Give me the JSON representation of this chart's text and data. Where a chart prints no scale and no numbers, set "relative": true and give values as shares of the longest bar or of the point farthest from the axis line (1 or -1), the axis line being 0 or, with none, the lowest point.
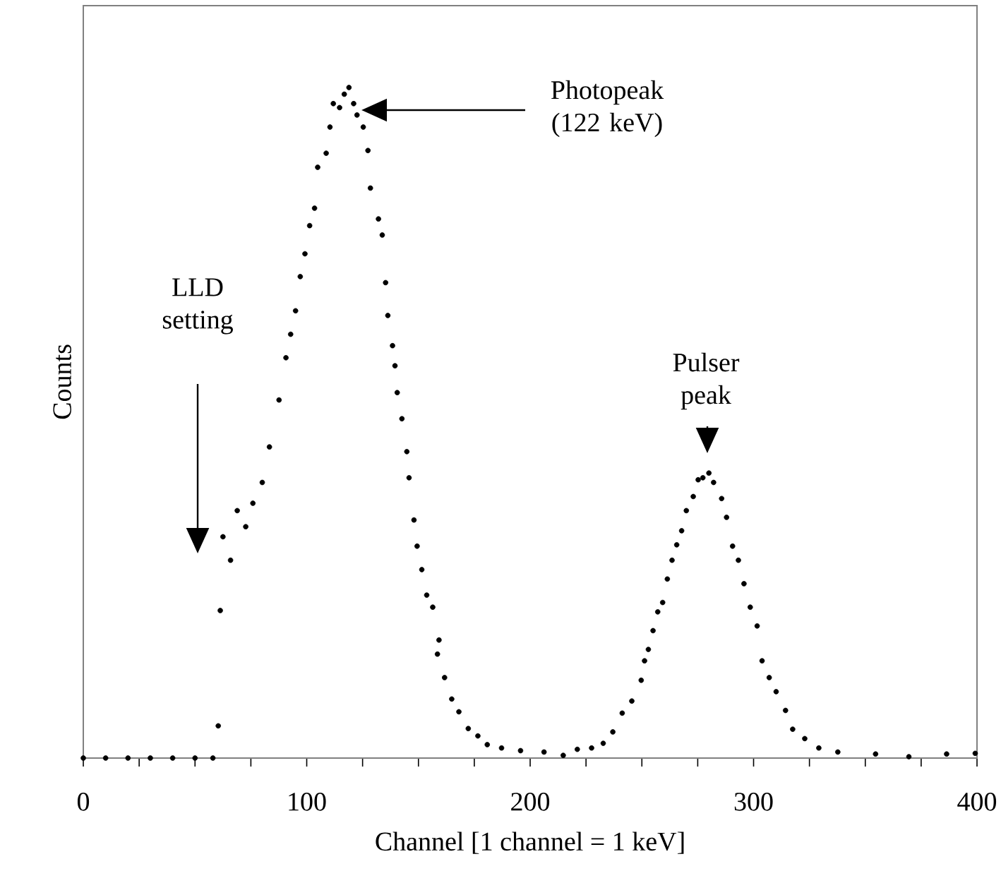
{
  "chart_data": {
    "type": "scatter",
    "relative": true,
    "xlabel": "Channel [1 channel = 1 keV]",
    "ylabel": "Counts",
    "marker": "circle",
    "xlim": [
      0,
      400
    ],
    "xticks": [
      0,
      {
        "value": 25,
        "label": null
      },
      {
        "value": 50,
        "label": null
      },
      {
        "value": 75,
        "label": null
      },
      100,
      {
        "value": 125,
        "label": null
      },
      {
        "value": 150,
        "label": null
      },
      {
        "value": 175,
        "label": null
      },
      200,
      {
        "value": 225,
        "label": null
      },
      {
        "value": 250,
        "label": null
      },
      {
        "value": 275,
        "label": null
      },
      300,
      {
        "value": 325,
        "label": null
      },
      {
        "value": 350,
        "label": null
      },
      {
        "value": 375,
        "label": null
      },
      400
    ],
    "annotations": [
      "Photopeak (122 keV)",
      "LLD setting",
      "Pulser peak"
    ],
    "series": [
      {
        "color": "#000000",
        "x": [
          0,
          10,
          20,
          30,
          40,
          50,
          58,
          60.4,
          61.3,
          62.5,
          65.9,
          68.9,
          72.7,
          75.9,
          80.1,
          83.3,
          87.6,
          90.7,
          92.8,
          95,
          97.1,
          99.2,
          101.3,
          103.5,
          104.9,
          108.7,
          110.4,
          111.9,
          114.7,
          116.8,
          118.9,
          121,
          122.5,
          125.3,
          127.4,
          128.5,
          132.1,
          133.8,
          135.3,
          136.3,
          138.4,
          139.5,
          140.5,
          142.6,
          144.8,
          145.8,
          148,
          149.4,
          151.5,
          153.7,
          156.4,
          158.5,
          159.2,
          161.7,
          164.9,
          168.1,
          172.3,
          176.6,
          180.8,
          187.2,
          195.7,
          206.2,
          214.8,
          221.1,
          227.5,
          232.7,
          237,
          241.2,
          245.5,
          249.7,
          251.2,
          252.9,
          255,
          257.1,
          259.3,
          261.4,
          263.5,
          265.6,
          267.8,
          269.9,
          273,
          275.2,
          277.3,
          280,
          282.1,
          285.7,
          287.9,
          290.6,
          293.2,
          295.7,
          298.5,
          301.6,
          303.8,
          307,
          310.1,
          314.3,
          317.5,
          322.9,
          329.2,
          337.7,
          354.6,
          369.5,
          386.4,
          399.2
        ],
        "values": [
          0,
          0,
          0,
          0,
          0,
          0,
          0,
          0.048,
          0.22,
          0.33,
          0.295,
          0.369,
          0.345,
          0.38,
          0.411,
          0.464,
          0.534,
          0.597,
          0.632,
          0.667,
          0.718,
          0.752,
          0.794,
          0.82,
          0.881,
          0.902,
          0.941,
          0.976,
          0.97,
          0.99,
          1,
          0.976,
          0.959,
          0.941,
          0.906,
          0.85,
          0.804,
          0.78,
          0.709,
          0.66,
          0.615,
          0.585,
          0.545,
          0.506,
          0.457,
          0.418,
          0.355,
          0.316,
          0.281,
          0.243,
          0.225,
          0.155,
          0.176,
          0.12,
          0.088,
          0.069,
          0.044,
          0.033,
          0.02,
          0.015,
          0.011,
          0.009,
          0.004,
          0.013,
          0.015,
          0.022,
          0.039,
          0.067,
          0.085,
          0.116,
          0.145,
          0.162,
          0.19,
          0.218,
          0.232,
          0.267,
          0.295,
          0.318,
          0.339,
          0.369,
          0.39,
          0.415,
          0.418,
          0.425,
          0.411,
          0.387,
          0.359,
          0.316,
          0.295,
          0.26,
          0.225,
          0.197,
          0.145,
          0.12,
          0.099,
          0.071,
          0.043,
          0.029,
          0.015,
          0.009,
          0.006,
          0.002,
          0.006,
          0.007
        ]
      }
    ]
  }
}
